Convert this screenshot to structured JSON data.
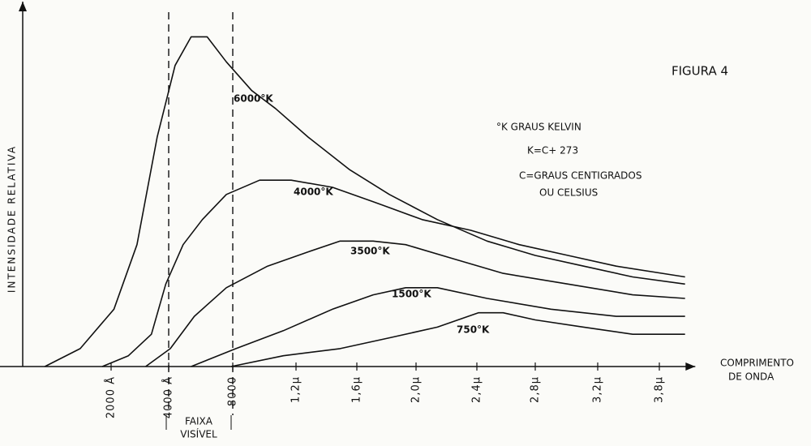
{
  "chart_data": {
    "type": "line",
    "title": "FIGURA 4",
    "ylabel": "INTENSIDADE RELATIVA",
    "xlabel": [
      "COMPRIMENTO",
      "DE ONDA"
    ],
    "annotations": [
      "°K GRAUS KELVIN",
      "K=C+ 273",
      "C=GRAUS CENTIGRADOS",
      "OU CELSIUS"
    ],
    "visible_band": {
      "label": [
        "FAIXA",
        "VISÍVEL"
      ],
      "range": [
        0.4,
        0.8
      ]
    },
    "xlim": [
      0,
      4.15
    ],
    "ylim": [
      0,
      100
    ],
    "xticks": [
      {
        "value": 0.2,
        "label": "2000 Å"
      },
      {
        "value": 0.4,
        "label": "4000 Å"
      },
      {
        "value": 0.8,
        "label": "8000"
      },
      {
        "value": 1.2,
        "label": "1,2µ"
      },
      {
        "value": 1.6,
        "label": "1,6µ"
      },
      {
        "value": 2.0,
        "label": "2,0µ"
      },
      {
        "value": 2.4,
        "label": "2,4µ"
      },
      {
        "value": 2.8,
        "label": "2,8µ"
      },
      {
        "value": 3.2,
        "label": "3,2µ"
      },
      {
        "value": 3.8,
        "label": "3,8µ"
      }
    ],
    "series": [
      {
        "name": "6000°K",
        "color": "#111111",
        "x": [
          0.05,
          0.13,
          0.21,
          0.29,
          0.36,
          0.44,
          0.54,
          0.64,
          0.76,
          0.92,
          1.07,
          1.28,
          1.55,
          1.82,
          2.14,
          2.47,
          2.8,
          3.11,
          3.54,
          4.05
        ],
        "values": [
          0,
          5,
          16,
          34,
          64,
          84,
          92,
          92,
          85,
          77,
          72,
          64,
          55,
          48,
          41,
          35,
          31,
          28,
          25,
          23
        ]
      },
      {
        "name": "4000°K",
        "color": "#111111",
        "x": [
          0.18,
          0.26,
          0.34,
          0.39,
          0.49,
          0.61,
          0.76,
          0.97,
          1.17,
          1.44,
          1.71,
          2.04,
          2.36,
          2.69,
          3.01,
          3.38,
          4.05
        ],
        "values": [
          0,
          3,
          9,
          23,
          34,
          41,
          48,
          52,
          52,
          50,
          46,
          41,
          38,
          34,
          31,
          28,
          25
        ]
      },
      {
        "name": "3500°K",
        "color": "#111111",
        "x": [
          0.32,
          0.41,
          0.56,
          0.76,
          1.02,
          1.28,
          1.49,
          1.71,
          1.93,
          2.25,
          2.58,
          3.01,
          3.54,
          4.05
        ],
        "values": [
          0,
          5,
          14,
          22,
          28,
          32,
          35,
          35,
          34,
          30,
          26,
          23,
          20,
          19
        ]
      },
      {
        "name": "1500°K",
        "color": "#111111",
        "x": [
          0.54,
          0.82,
          1.12,
          1.44,
          1.71,
          1.93,
          2.14,
          2.47,
          2.9,
          3.38,
          4.05
        ],
        "values": [
          0,
          5,
          10,
          16,
          20,
          22,
          22,
          19,
          16,
          14,
          14
        ]
      },
      {
        "name": "750°K",
        "color": "#111111",
        "x": [
          0.79,
          1.12,
          1.49,
          1.82,
          2.14,
          2.41,
          2.58,
          2.8,
          3.11,
          3.54,
          4.05
        ],
        "values": [
          0,
          3,
          5,
          8,
          11,
          15,
          15,
          13,
          11,
          9,
          9
        ]
      }
    ]
  }
}
